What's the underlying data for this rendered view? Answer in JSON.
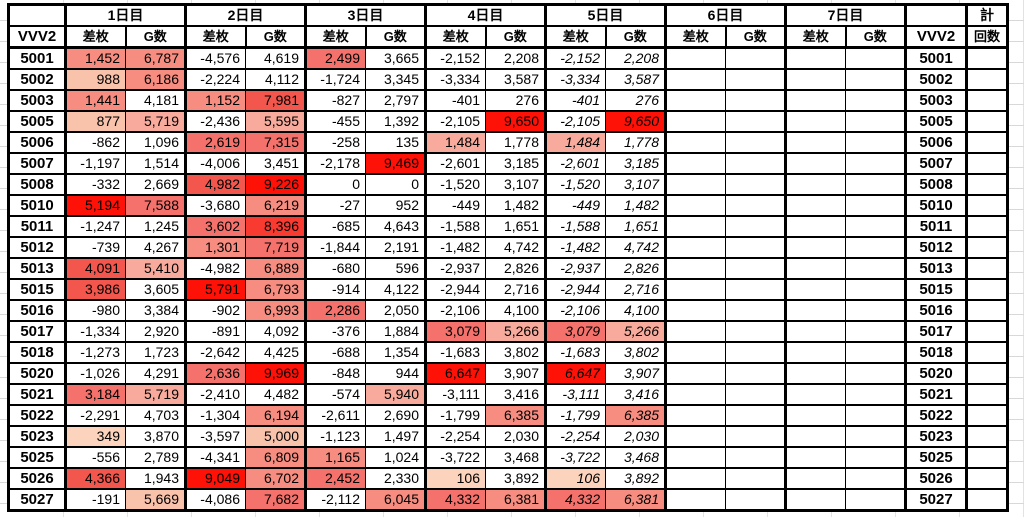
{
  "header": {
    "days": [
      "1日目",
      "2日目",
      "3日目",
      "4日目",
      "5日目",
      "6日目",
      "7日目"
    ],
    "total_label": "計",
    "machine_col": "VVV2",
    "sub_diff": "差枚",
    "sub_games": "G数",
    "count_col": "回数"
  },
  "palette": [
    "#ffffff",
    "#fcd3bc",
    "#f9c2ab",
    "#f8ab9c",
    "#f68d80",
    "#f4726b",
    "#f2564c",
    "#f93a30",
    "#fe1106"
  ],
  "rows": [
    {
      "id": "5001",
      "c": [
        [
          "1,452",
          4
        ],
        [
          "6,787",
          4
        ],
        [
          "-4,576",
          0
        ],
        [
          "4,619",
          0
        ],
        [
          "2,499",
          5
        ],
        [
          "3,665",
          0
        ],
        [
          "-2,152",
          0
        ],
        [
          "2,208",
          0
        ],
        [
          "-2,152",
          0
        ],
        [
          "2,208",
          0
        ],
        [
          "",
          0
        ],
        [
          "",
          0
        ],
        [
          "",
          0
        ],
        [
          "",
          0
        ]
      ]
    },
    {
      "id": "5002",
      "c": [
        [
          "988",
          2
        ],
        [
          "6,186",
          4
        ],
        [
          "-2,224",
          0
        ],
        [
          "4,112",
          0
        ],
        [
          "-1,724",
          0
        ],
        [
          "3,345",
          0
        ],
        [
          "-3,334",
          0
        ],
        [
          "3,587",
          0
        ],
        [
          "-3,334",
          0
        ],
        [
          "3,587",
          0
        ],
        [
          "",
          0
        ],
        [
          "",
          0
        ],
        [
          "",
          0
        ],
        [
          "",
          0
        ]
      ]
    },
    {
      "id": "5003",
      "c": [
        [
          "1,441",
          4
        ],
        [
          "4,181",
          0
        ],
        [
          "1,152",
          4
        ],
        [
          "7,981",
          6
        ],
        [
          "-827",
          0
        ],
        [
          "2,797",
          0
        ],
        [
          "-401",
          0
        ],
        [
          "276",
          0
        ],
        [
          "-401",
          0
        ],
        [
          "276",
          0
        ],
        [
          "",
          0
        ],
        [
          "",
          0
        ],
        [
          "",
          0
        ],
        [
          "",
          0
        ]
      ]
    },
    {
      "id": "5005",
      "c": [
        [
          "877",
          2
        ],
        [
          "5,719",
          3
        ],
        [
          "-2,436",
          0
        ],
        [
          "5,595",
          3
        ],
        [
          "-455",
          0
        ],
        [
          "1,392",
          0
        ],
        [
          "-2,105",
          0
        ],
        [
          "9,650",
          8
        ],
        [
          "-2,105",
          0
        ],
        [
          "9,650",
          8
        ],
        [
          "",
          0
        ],
        [
          "",
          0
        ],
        [
          "",
          0
        ],
        [
          "",
          0
        ]
      ]
    },
    {
      "id": "5006",
      "c": [
        [
          "-862",
          0
        ],
        [
          "1,096",
          0
        ],
        [
          "2,619",
          5
        ],
        [
          "7,315",
          5
        ],
        [
          "-258",
          0
        ],
        [
          "135",
          0
        ],
        [
          "1,484",
          3
        ],
        [
          "1,778",
          0
        ],
        [
          "1,484",
          3
        ],
        [
          "1,778",
          0
        ],
        [
          "",
          0
        ],
        [
          "",
          0
        ],
        [
          "",
          0
        ],
        [
          "",
          0
        ]
      ]
    },
    {
      "id": "5007",
      "c": [
        [
          "-1,197",
          0
        ],
        [
          "1,514",
          0
        ],
        [
          "-4,006",
          0
        ],
        [
          "3,451",
          0
        ],
        [
          "-2,178",
          0
        ],
        [
          "9,469",
          8
        ],
        [
          "-2,601",
          0
        ],
        [
          "3,185",
          0
        ],
        [
          "-2,601",
          0
        ],
        [
          "3,185",
          0
        ],
        [
          "",
          0
        ],
        [
          "",
          0
        ],
        [
          "",
          0
        ],
        [
          "",
          0
        ]
      ]
    },
    {
      "id": "5008",
      "c": [
        [
          "-332",
          0
        ],
        [
          "2,669",
          0
        ],
        [
          "4,982",
          6
        ],
        [
          "9,226",
          8
        ],
        [
          "0",
          0
        ],
        [
          "0",
          0
        ],
        [
          "-1,520",
          0
        ],
        [
          "3,107",
          0
        ],
        [
          "-1,520",
          0
        ],
        [
          "3,107",
          0
        ],
        [
          "",
          0
        ],
        [
          "",
          0
        ],
        [
          "",
          0
        ],
        [
          "",
          0
        ]
      ]
    },
    {
      "id": "5010",
      "c": [
        [
          "5,194",
          8
        ],
        [
          "7,588",
          5
        ],
        [
          "-3,680",
          0
        ],
        [
          "6,219",
          4
        ],
        [
          "-27",
          0
        ],
        [
          "952",
          0
        ],
        [
          "-449",
          0
        ],
        [
          "1,482",
          0
        ],
        [
          "-449",
          0
        ],
        [
          "1,482",
          0
        ],
        [
          "",
          0
        ],
        [
          "",
          0
        ],
        [
          "",
          0
        ],
        [
          "",
          0
        ]
      ]
    },
    {
      "id": "5011",
      "c": [
        [
          "-1,247",
          0
        ],
        [
          "1,245",
          0
        ],
        [
          "3,602",
          5
        ],
        [
          "8,396",
          7
        ],
        [
          "-685",
          0
        ],
        [
          "4,643",
          0
        ],
        [
          "-1,588",
          0
        ],
        [
          "1,651",
          0
        ],
        [
          "-1,588",
          0
        ],
        [
          "1,651",
          0
        ],
        [
          "",
          0
        ],
        [
          "",
          0
        ],
        [
          "",
          0
        ],
        [
          "",
          0
        ]
      ]
    },
    {
      "id": "5012",
      "c": [
        [
          "-739",
          0
        ],
        [
          "4,267",
          0
        ],
        [
          "1,301",
          4
        ],
        [
          "7,719",
          5
        ],
        [
          "-1,844",
          0
        ],
        [
          "2,191",
          0
        ],
        [
          "-1,482",
          0
        ],
        [
          "4,742",
          0
        ],
        [
          "-1,482",
          0
        ],
        [
          "4,742",
          0
        ],
        [
          "",
          0
        ],
        [
          "",
          0
        ],
        [
          "",
          0
        ],
        [
          "",
          0
        ]
      ]
    },
    {
      "id": "5013",
      "c": [
        [
          "4,091",
          6
        ],
        [
          "5,410",
          3
        ],
        [
          "-4,982",
          0
        ],
        [
          "6,889",
          4
        ],
        [
          "-680",
          0
        ],
        [
          "596",
          0
        ],
        [
          "-2,937",
          0
        ],
        [
          "2,826",
          0
        ],
        [
          "-2,937",
          0
        ],
        [
          "2,826",
          0
        ],
        [
          "",
          0
        ],
        [
          "",
          0
        ],
        [
          "",
          0
        ],
        [
          "",
          0
        ]
      ]
    },
    {
      "id": "5015",
      "c": [
        [
          "3,986",
          6
        ],
        [
          "3,605",
          0
        ],
        [
          "5,791",
          8
        ],
        [
          "6,793",
          4
        ],
        [
          "-914",
          0
        ],
        [
          "4,122",
          0
        ],
        [
          "-2,944",
          0
        ],
        [
          "2,716",
          0
        ],
        [
          "-2,944",
          0
        ],
        [
          "2,716",
          0
        ],
        [
          "",
          0
        ],
        [
          "",
          0
        ],
        [
          "",
          0
        ],
        [
          "",
          0
        ]
      ]
    },
    {
      "id": "5016",
      "c": [
        [
          "-980",
          0
        ],
        [
          "3,384",
          0
        ],
        [
          "-902",
          0
        ],
        [
          "6,993",
          4
        ],
        [
          "2,286",
          5
        ],
        [
          "2,050",
          0
        ],
        [
          "-2,106",
          0
        ],
        [
          "4,100",
          0
        ],
        [
          "-2,106",
          0
        ],
        [
          "4,100",
          0
        ],
        [
          "",
          0
        ],
        [
          "",
          0
        ],
        [
          "",
          0
        ],
        [
          "",
          0
        ]
      ]
    },
    {
      "id": "5017",
      "c": [
        [
          "-1,334",
          0
        ],
        [
          "2,920",
          0
        ],
        [
          "-891",
          0
        ],
        [
          "4,092",
          0
        ],
        [
          "-376",
          0
        ],
        [
          "1,884",
          0
        ],
        [
          "3,079",
          5
        ],
        [
          "5,266",
          3
        ],
        [
          "3,079",
          5
        ],
        [
          "5,266",
          3
        ],
        [
          "",
          0
        ],
        [
          "",
          0
        ],
        [
          "",
          0
        ],
        [
          "",
          0
        ]
      ]
    },
    {
      "id": "5018",
      "c": [
        [
          "-1,273",
          0
        ],
        [
          "1,723",
          0
        ],
        [
          "-2,642",
          0
        ],
        [
          "4,425",
          0
        ],
        [
          "-688",
          0
        ],
        [
          "1,354",
          0
        ],
        [
          "-1,683",
          0
        ],
        [
          "3,802",
          0
        ],
        [
          "-1,683",
          0
        ],
        [
          "3,802",
          0
        ],
        [
          "",
          0
        ],
        [
          "",
          0
        ],
        [
          "",
          0
        ],
        [
          "",
          0
        ]
      ]
    },
    {
      "id": "5020",
      "c": [
        [
          "-1,026",
          0
        ],
        [
          "4,291",
          0
        ],
        [
          "2,636",
          5
        ],
        [
          "9,969",
          8
        ],
        [
          "-848",
          0
        ],
        [
          "944",
          0
        ],
        [
          "6,647",
          8
        ],
        [
          "3,907",
          0
        ],
        [
          "6,647",
          8
        ],
        [
          "3,907",
          0
        ],
        [
          "",
          0
        ],
        [
          "",
          0
        ],
        [
          "",
          0
        ],
        [
          "",
          0
        ]
      ]
    },
    {
      "id": "5021",
      "c": [
        [
          "3,184",
          5
        ],
        [
          "5,719",
          3
        ],
        [
          "-2,410",
          0
        ],
        [
          "4,482",
          0
        ],
        [
          "-574",
          0
        ],
        [
          "5,940",
          3
        ],
        [
          "-3,111",
          0
        ],
        [
          "3,416",
          0
        ],
        [
          "-3,111",
          0
        ],
        [
          "3,416",
          0
        ],
        [
          "",
          0
        ],
        [
          "",
          0
        ],
        [
          "",
          0
        ],
        [
          "",
          0
        ]
      ]
    },
    {
      "id": "5022",
      "c": [
        [
          "-2,291",
          0
        ],
        [
          "4,703",
          0
        ],
        [
          "-1,304",
          0
        ],
        [
          "6,194",
          4
        ],
        [
          "-2,611",
          0
        ],
        [
          "2,690",
          0
        ],
        [
          "-1,799",
          0
        ],
        [
          "6,385",
          4
        ],
        [
          "-1,799",
          0
        ],
        [
          "6,385",
          4
        ],
        [
          "",
          0
        ],
        [
          "",
          0
        ],
        [
          "",
          0
        ],
        [
          "",
          0
        ]
      ]
    },
    {
      "id": "5023",
      "c": [
        [
          "349",
          1
        ],
        [
          "3,870",
          0
        ],
        [
          "-3,597",
          0
        ],
        [
          "5,000",
          2
        ],
        [
          "-1,123",
          0
        ],
        [
          "1,497",
          0
        ],
        [
          "-2,254",
          0
        ],
        [
          "2,030",
          0
        ],
        [
          "-2,254",
          0
        ],
        [
          "2,030",
          0
        ],
        [
          "",
          0
        ],
        [
          "",
          0
        ],
        [
          "",
          0
        ],
        [
          "",
          0
        ]
      ]
    },
    {
      "id": "5025",
      "c": [
        [
          "-556",
          0
        ],
        [
          "2,789",
          0
        ],
        [
          "-4,341",
          0
        ],
        [
          "6,809",
          4
        ],
        [
          "1,165",
          4
        ],
        [
          "1,024",
          0
        ],
        [
          "-3,722",
          0
        ],
        [
          "3,468",
          0
        ],
        [
          "-3,722",
          0
        ],
        [
          "3,468",
          0
        ],
        [
          "",
          0
        ],
        [
          "",
          0
        ],
        [
          "",
          0
        ],
        [
          "",
          0
        ]
      ]
    },
    {
      "id": "5026",
      "c": [
        [
          "4,366",
          6
        ],
        [
          "1,943",
          0
        ],
        [
          "9,049",
          8
        ],
        [
          "6,702",
          4
        ],
        [
          "2,452",
          5
        ],
        [
          "2,330",
          0
        ],
        [
          "106",
          1
        ],
        [
          "3,892",
          0
        ],
        [
          "106",
          1
        ],
        [
          "3,892",
          0
        ],
        [
          "",
          0
        ],
        [
          "",
          0
        ],
        [
          "",
          0
        ],
        [
          "",
          0
        ]
      ]
    },
    {
      "id": "5027",
      "c": [
        [
          "-191",
          0
        ],
        [
          "5,669",
          2
        ],
        [
          "-4,086",
          0
        ],
        [
          "7,682",
          5
        ],
        [
          "-2,112",
          0
        ],
        [
          "6,045",
          4
        ],
        [
          "4,332",
          5
        ],
        [
          "6,381",
          4
        ],
        [
          "4,332",
          5
        ],
        [
          "6,381",
          4
        ],
        [
          "",
          0
        ],
        [
          "",
          0
        ],
        [
          "",
          0
        ],
        [
          "",
          0
        ]
      ]
    }
  ]
}
